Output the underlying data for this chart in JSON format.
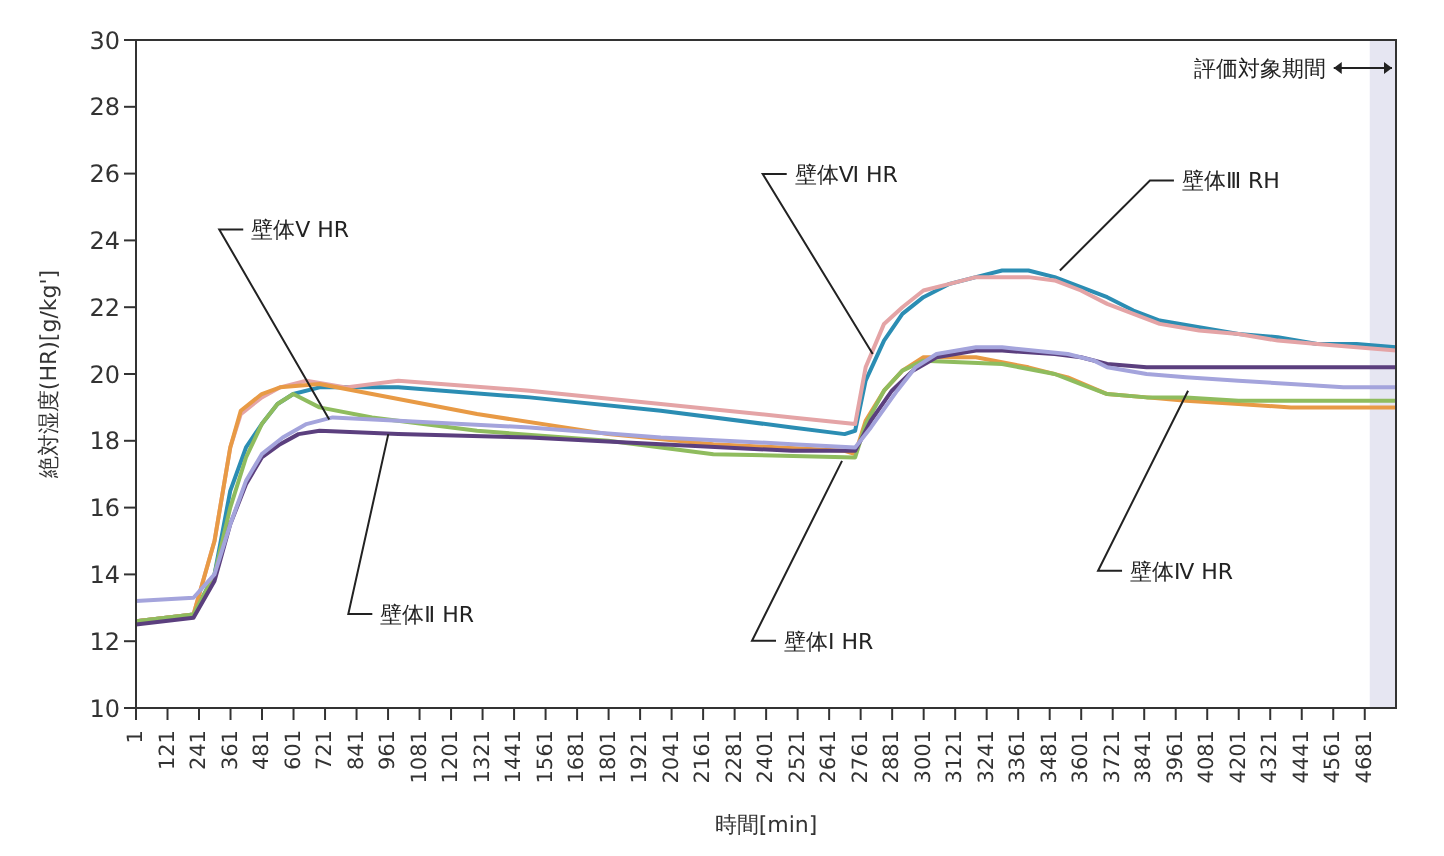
{
  "chart_data": {
    "type": "line",
    "xlabel": "時間[min]",
    "ylabel": "絶対湿度(HR)[g/kg']",
    "xlim": [
      1,
      4800
    ],
    "xticks": [
      1,
      121,
      241,
      361,
      481,
      601,
      721,
      841,
      961,
      1081,
      1201,
      1321,
      1441,
      1561,
      1681,
      1801,
      1921,
      2041,
      2161,
      2281,
      2401,
      2521,
      2641,
      2761,
      2881,
      3001,
      3121,
      3241,
      3361,
      3481,
      3601,
      3721,
      3841,
      3961,
      4081,
      4201,
      4321,
      4441,
      4561,
      4681
    ],
    "ylim": [
      10,
      30
    ],
    "yticks": [
      10,
      12,
      14,
      16,
      18,
      20,
      22,
      24,
      26,
      28,
      30
    ],
    "marker": "none",
    "line_style": "solid",
    "series": [
      {
        "color": "#2b8db3",
        "x": [
          1,
          220,
          300,
          360,
          420,
          480,
          540,
          600,
          700,
          1000,
          1500,
          2000,
          2500,
          2700,
          2740,
          2780,
          2850,
          2920,
          3000,
          3100,
          3200,
          3300,
          3400,
          3500,
          3600,
          3700,
          3800,
          3900,
          4050,
          4200,
          4350,
          4500,
          4650,
          4800
        ],
        "values": [
          12.6,
          12.8,
          14,
          16.5,
          17.8,
          18.5,
          19.1,
          19.4,
          19.6,
          19.6,
          19.3,
          18.9,
          18.4,
          18.2,
          18.3,
          19.8,
          21,
          21.8,
          22.3,
          22.7,
          22.9,
          23.1,
          23.1,
          22.9,
          22.6,
          22.3,
          21.9,
          21.6,
          21.4,
          21.2,
          21.1,
          20.9,
          20.9,
          20.8
        ]
      },
      {
        "color": "#e4a4a6",
        "x": [
          1,
          220,
          300,
          360,
          400,
          480,
          550,
          650,
          800,
          1000,
          1500,
          2000,
          2500,
          2740,
          2780,
          2850,
          2920,
          3000,
          3100,
          3200,
          3300,
          3400,
          3500,
          3600,
          3700,
          3800,
          3900,
          4050,
          4200,
          4350,
          4500,
          4650,
          4800
        ],
        "values": [
          12.6,
          12.8,
          15,
          17.8,
          18.8,
          19.3,
          19.6,
          19.8,
          19.6,
          19.8,
          19.5,
          19.1,
          18.7,
          18.5,
          20.2,
          21.5,
          22,
          22.5,
          22.7,
          22.9,
          22.9,
          22.9,
          22.8,
          22.5,
          22.1,
          21.8,
          21.5,
          21.3,
          21.2,
          21,
          20.9,
          20.8,
          20.7
        ]
      },
      {
        "color": "#e89a45",
        "x": [
          1,
          220,
          300,
          360,
          400,
          480,
          550,
          700,
          900,
          1300,
          1800,
          2200,
          2700,
          2740,
          2780,
          2850,
          2920,
          3000,
          3200,
          3400,
          3550,
          3700,
          3850,
          4000,
          4200,
          4400,
          4600,
          4800
        ],
        "values": [
          12.6,
          12.8,
          15,
          17.8,
          18.9,
          19.4,
          19.6,
          19.7,
          19.4,
          18.8,
          18.2,
          17.9,
          17.7,
          17.6,
          18.6,
          19.5,
          20.1,
          20.5,
          20.5,
          20.2,
          19.9,
          19.4,
          19.3,
          19.2,
          19.1,
          19,
          19,
          19
        ]
      },
      {
        "color": "#8fbc5e",
        "x": [
          1,
          220,
          300,
          360,
          420,
          480,
          540,
          600,
          700,
          900,
          1300,
          1800,
          2200,
          2740,
          2780,
          2850,
          2920,
          3000,
          3300,
          3500,
          3600,
          3700,
          3850,
          4000,
          4200,
          4400,
          4600,
          4800
        ],
        "values": [
          12.6,
          12.8,
          14,
          16,
          17.5,
          18.5,
          19.1,
          19.4,
          19,
          18.7,
          18.3,
          18,
          17.6,
          17.5,
          18.5,
          19.5,
          20.1,
          20.4,
          20.3,
          20,
          19.7,
          19.4,
          19.3,
          19.3,
          19.2,
          19.2,
          19.2,
          19.2
        ]
      },
      {
        "color": "#5b3f7e",
        "x": [
          1,
          220,
          300,
          360,
          420,
          480,
          550,
          620,
          700,
          1000,
          1500,
          2000,
          2500,
          2740,
          2800,
          2880,
          2960,
          3050,
          3200,
          3300,
          3500,
          3600,
          3700,
          3850,
          4000,
          4200,
          4400,
          4600,
          4800
        ],
        "values": [
          12.5,
          12.7,
          13.8,
          15.5,
          16.7,
          17.5,
          17.9,
          18.2,
          18.3,
          18.2,
          18.1,
          17.9,
          17.7,
          17.7,
          18.6,
          19.5,
          20.1,
          20.5,
          20.7,
          20.7,
          20.6,
          20.5,
          20.3,
          20.2,
          20.2,
          20.2,
          20.2,
          20.2,
          20.2
        ]
      },
      {
        "color": "#a4a4dc",
        "x": [
          1,
          220,
          300,
          360,
          420,
          480,
          560,
          650,
          750,
          1000,
          1500,
          2000,
          2500,
          2740,
          2800,
          2900,
          2970,
          3050,
          3200,
          3300,
          3550,
          3650,
          3700,
          3850,
          4000,
          4200,
          4400,
          4600,
          4800
        ],
        "values": [
          13.2,
          13.3,
          14,
          15.5,
          16.8,
          17.6,
          18.1,
          18.5,
          18.7,
          18.6,
          18.4,
          18.1,
          17.9,
          17.8,
          18.4,
          19.5,
          20.2,
          20.6,
          20.8,
          20.8,
          20.6,
          20.4,
          20.2,
          20,
          19.9,
          19.8,
          19.7,
          19.6,
          19.6
        ]
      }
    ],
    "bands": [
      {
        "axis": "x",
        "from": 4700,
        "to": 4800,
        "label": "評価対象期間",
        "color": "#e6e6f2"
      }
    ],
    "annotations": [
      {
        "text": "壁体Ⅴ HR",
        "x": 737,
        "y": 18.64
      },
      {
        "text": "壁体Ⅱ HR",
        "x": 962,
        "y": 18.2
      },
      {
        "text": "壁体Ⅵ HR",
        "x": 2807,
        "y": 20.6
      },
      {
        "text": "壁体Ⅲ RH",
        "x": 3520,
        "y": 23.1
      },
      {
        "text": "壁体Ⅰ HR",
        "x": 2690,
        "y": 17.4
      },
      {
        "text": "壁体Ⅳ HR",
        "x": 4008,
        "y": 19.5
      }
    ]
  }
}
